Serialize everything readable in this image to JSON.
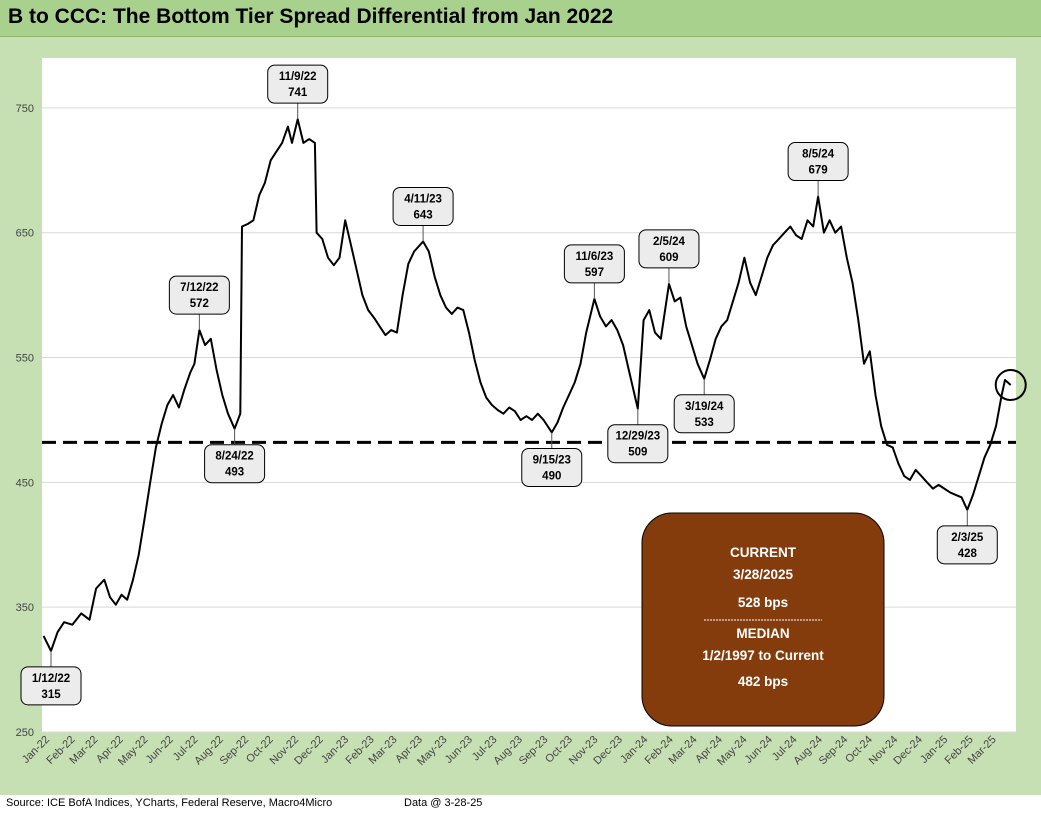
{
  "chart_data": {
    "type": "line",
    "title": "B to CCC: The Bottom Tier Spread Differential from Jan 2022",
    "xlabel": "",
    "ylabel": "",
    "ylim": [
      250,
      790
    ],
    "yticks": [
      250,
      350,
      450,
      550,
      650,
      750
    ],
    "grid": "horizontal",
    "x_tick_labels": [
      "Jan-22",
      "Feb-22",
      "Mar-22",
      "Apr-22",
      "May-22",
      "Jun-22",
      "Jul-22",
      "Aug-22",
      "Sep-22",
      "Oct-22",
      "Nov-22",
      "Dec-22",
      "Jan-23",
      "Feb-23",
      "Mar-23",
      "Apr-23",
      "May-23",
      "Jun-23",
      "Jul-23",
      "Aug-23",
      "Sep-23",
      "Oct-23",
      "Nov-23",
      "Dec-23",
      "Jan-24",
      "Feb-24",
      "Mar-24",
      "Apr-24",
      "May-24",
      "Jun-24",
      "Jul-24",
      "Aug-24",
      "Sep-24",
      "Oct-24",
      "Nov-24",
      "Dec-24",
      "Jan-25",
      "Feb-25",
      "Mar-25"
    ],
    "series": [
      {
        "values": [
          [
            "2022-01-03",
            327
          ],
          [
            "2022-01-12",
            315
          ],
          [
            "2022-01-20",
            330
          ],
          [
            "2022-01-28",
            338
          ],
          [
            "2022-02-07",
            336
          ],
          [
            "2022-02-18",
            345
          ],
          [
            "2022-02-28",
            340
          ],
          [
            "2022-03-08",
            365
          ],
          [
            "2022-03-18",
            372
          ],
          [
            "2022-03-25",
            358
          ],
          [
            "2022-04-01",
            352
          ],
          [
            "2022-04-08",
            360
          ],
          [
            "2022-04-15",
            356
          ],
          [
            "2022-04-22",
            372
          ],
          [
            "2022-04-29",
            392
          ],
          [
            "2022-05-06",
            420
          ],
          [
            "2022-05-13",
            450
          ],
          [
            "2022-05-20",
            478
          ],
          [
            "2022-05-27",
            497
          ],
          [
            "2022-06-03",
            512
          ],
          [
            "2022-06-10",
            520
          ],
          [
            "2022-06-17",
            510
          ],
          [
            "2022-06-24",
            525
          ],
          [
            "2022-07-01",
            538
          ],
          [
            "2022-07-06",
            545
          ],
          [
            "2022-07-12",
            572
          ],
          [
            "2022-07-19",
            560
          ],
          [
            "2022-07-26",
            565
          ],
          [
            "2022-08-02",
            540
          ],
          [
            "2022-08-09",
            520
          ],
          [
            "2022-08-16",
            505
          ],
          [
            "2022-08-24",
            493
          ],
          [
            "2022-08-31",
            505
          ],
          [
            "2022-09-02",
            655
          ],
          [
            "2022-09-09",
            657
          ],
          [
            "2022-09-16",
            660
          ],
          [
            "2022-09-23",
            680
          ],
          [
            "2022-09-30",
            690
          ],
          [
            "2022-10-07",
            708
          ],
          [
            "2022-10-14",
            715
          ],
          [
            "2022-10-21",
            722
          ],
          [
            "2022-10-28",
            735
          ],
          [
            "2022-11-02",
            722
          ],
          [
            "2022-11-09",
            741
          ],
          [
            "2022-11-16",
            722
          ],
          [
            "2022-11-23",
            725
          ],
          [
            "2022-11-30",
            722
          ],
          [
            "2022-12-02",
            650
          ],
          [
            "2022-12-09",
            645
          ],
          [
            "2022-12-16",
            630
          ],
          [
            "2022-12-23",
            624
          ],
          [
            "2022-12-30",
            630
          ],
          [
            "2023-01-06",
            660
          ],
          [
            "2023-01-13",
            640
          ],
          [
            "2023-01-20",
            620
          ],
          [
            "2023-01-27",
            600
          ],
          [
            "2023-02-03",
            588
          ],
          [
            "2023-02-10",
            582
          ],
          [
            "2023-02-17",
            575
          ],
          [
            "2023-02-24",
            568
          ],
          [
            "2023-03-03",
            572
          ],
          [
            "2023-03-10",
            570
          ],
          [
            "2023-03-17",
            600
          ],
          [
            "2023-03-24",
            625
          ],
          [
            "2023-03-31",
            635
          ],
          [
            "2023-04-11",
            643
          ],
          [
            "2023-04-18",
            635
          ],
          [
            "2023-04-25",
            615
          ],
          [
            "2023-05-02",
            600
          ],
          [
            "2023-05-09",
            590
          ],
          [
            "2023-05-16",
            585
          ],
          [
            "2023-05-23",
            590
          ],
          [
            "2023-05-30",
            588
          ],
          [
            "2023-06-06",
            570
          ],
          [
            "2023-06-13",
            548
          ],
          [
            "2023-06-20",
            530
          ],
          [
            "2023-06-27",
            518
          ],
          [
            "2023-07-04",
            512
          ],
          [
            "2023-07-11",
            508
          ],
          [
            "2023-07-18",
            505
          ],
          [
            "2023-07-25",
            510
          ],
          [
            "2023-08-01",
            507
          ],
          [
            "2023-08-08",
            500
          ],
          [
            "2023-08-15",
            503
          ],
          [
            "2023-08-22",
            500
          ],
          [
            "2023-08-29",
            505
          ],
          [
            "2023-09-05",
            500
          ],
          [
            "2023-09-15",
            490
          ],
          [
            "2023-09-22",
            498
          ],
          [
            "2023-09-29",
            510
          ],
          [
            "2023-10-06",
            520
          ],
          [
            "2023-10-13",
            530
          ],
          [
            "2023-10-20",
            545
          ],
          [
            "2023-10-27",
            570
          ],
          [
            "2023-11-06",
            597
          ],
          [
            "2023-11-13",
            583
          ],
          [
            "2023-11-20",
            575
          ],
          [
            "2023-11-27",
            580
          ],
          [
            "2023-12-04",
            572
          ],
          [
            "2023-12-11",
            560
          ],
          [
            "2023-12-18",
            540
          ],
          [
            "2023-12-29",
            509
          ],
          [
            "2024-01-05",
            580
          ],
          [
            "2024-01-12",
            588
          ],
          [
            "2024-01-19",
            570
          ],
          [
            "2024-01-26",
            565
          ],
          [
            "2024-02-05",
            609
          ],
          [
            "2024-02-12",
            595
          ],
          [
            "2024-02-19",
            598
          ],
          [
            "2024-02-26",
            575
          ],
          [
            "2024-03-04",
            560
          ],
          [
            "2024-03-11",
            545
          ],
          [
            "2024-03-19",
            533
          ],
          [
            "2024-03-26",
            548
          ],
          [
            "2024-04-02",
            565
          ],
          [
            "2024-04-09",
            575
          ],
          [
            "2024-04-16",
            580
          ],
          [
            "2024-04-23",
            595
          ],
          [
            "2024-04-30",
            610
          ],
          [
            "2024-05-07",
            630
          ],
          [
            "2024-05-14",
            610
          ],
          [
            "2024-05-21",
            600
          ],
          [
            "2024-05-28",
            615
          ],
          [
            "2024-06-04",
            630
          ],
          [
            "2024-06-11",
            640
          ],
          [
            "2024-06-18",
            645
          ],
          [
            "2024-06-25",
            650
          ],
          [
            "2024-07-02",
            655
          ],
          [
            "2024-07-09",
            648
          ],
          [
            "2024-07-16",
            645
          ],
          [
            "2024-07-23",
            660
          ],
          [
            "2024-07-30",
            655
          ],
          [
            "2024-08-05",
            679
          ],
          [
            "2024-08-12",
            650
          ],
          [
            "2024-08-19",
            660
          ],
          [
            "2024-08-26",
            650
          ],
          [
            "2024-09-02",
            655
          ],
          [
            "2024-09-09",
            630
          ],
          [
            "2024-09-16",
            610
          ],
          [
            "2024-09-23",
            580
          ],
          [
            "2024-09-30",
            545
          ],
          [
            "2024-10-07",
            555
          ],
          [
            "2024-10-14",
            520
          ],
          [
            "2024-10-21",
            495
          ],
          [
            "2024-10-28",
            480
          ],
          [
            "2024-11-04",
            478
          ],
          [
            "2024-11-11",
            465
          ],
          [
            "2024-11-18",
            455
          ],
          [
            "2024-11-25",
            452
          ],
          [
            "2024-12-02",
            460
          ],
          [
            "2024-12-09",
            455
          ],
          [
            "2024-12-16",
            450
          ],
          [
            "2024-12-23",
            445
          ],
          [
            "2024-12-30",
            448
          ],
          [
            "2025-01-06",
            445
          ],
          [
            "2025-01-13",
            442
          ],
          [
            "2025-01-20",
            440
          ],
          [
            "2025-01-27",
            438
          ],
          [
            "2025-02-03",
            428
          ],
          [
            "2025-02-10",
            440
          ],
          [
            "2025-02-17",
            455
          ],
          [
            "2025-02-24",
            470
          ],
          [
            "2025-03-03",
            480
          ],
          [
            "2025-03-10",
            495
          ],
          [
            "2025-03-17",
            520
          ],
          [
            "2025-03-21",
            532
          ],
          [
            "2025-03-28",
            528
          ]
        ]
      }
    ],
    "median_line": {
      "value": 482,
      "style": "dashed"
    },
    "annotations": [
      {
        "date": "1/12/22",
        "value": "315",
        "x": "2022-01-12",
        "y": 315,
        "pos": "below"
      },
      {
        "date": "7/12/22",
        "value": "572",
        "x": "2022-07-12",
        "y": 572,
        "pos": "above"
      },
      {
        "date": "8/24/22",
        "value": "493",
        "x": "2022-08-24",
        "y": 493,
        "pos": "below"
      },
      {
        "date": "11/9/22",
        "value": "741",
        "x": "2022-11-09",
        "y": 741,
        "pos": "above"
      },
      {
        "date": "4/11/23",
        "value": "643",
        "x": "2023-04-11",
        "y": 643,
        "pos": "above"
      },
      {
        "date": "9/15/23",
        "value": "490",
        "x": "2023-09-15",
        "y": 490,
        "pos": "below"
      },
      {
        "date": "11/6/23",
        "value": "597",
        "x": "2023-11-06",
        "y": 597,
        "pos": "above"
      },
      {
        "date": "12/29/23",
        "value": "509",
        "x": "2023-12-29",
        "y": 509,
        "pos": "below"
      },
      {
        "date": "2/5/24",
        "value": "609",
        "x": "2024-02-05",
        "y": 609,
        "pos": "above"
      },
      {
        "date": "3/19/24",
        "value": "533",
        "x": "2024-03-19",
        "y": 533,
        "pos": "below"
      },
      {
        "date": "8/5/24",
        "value": "679",
        "x": "2024-08-05",
        "y": 679,
        "pos": "above"
      },
      {
        "date": "2/3/25",
        "value": "428",
        "x": "2025-02-03",
        "y": 428,
        "pos": "below"
      }
    ],
    "info_box": {
      "color": "#843c0c",
      "current_label": "CURRENT",
      "current_date": "3/28/2025",
      "current_value": "528 bps",
      "median_label": "MEDIAN",
      "median_range": "1/2/1997 to Current",
      "median_value": "482 bps"
    },
    "current_marker": {
      "x": "2025-03-28",
      "y": 528
    },
    "colors": {
      "line": "#000000",
      "frame": "#c6e0b4",
      "title_bar": "#a9d18e",
      "grid": "#d9d9d9"
    }
  },
  "footer": {
    "source": "Source: ICE BofA Indices, YCharts, Federal Reserve, Macro4Micro",
    "data_date": "Data @ 3-28-25"
  }
}
